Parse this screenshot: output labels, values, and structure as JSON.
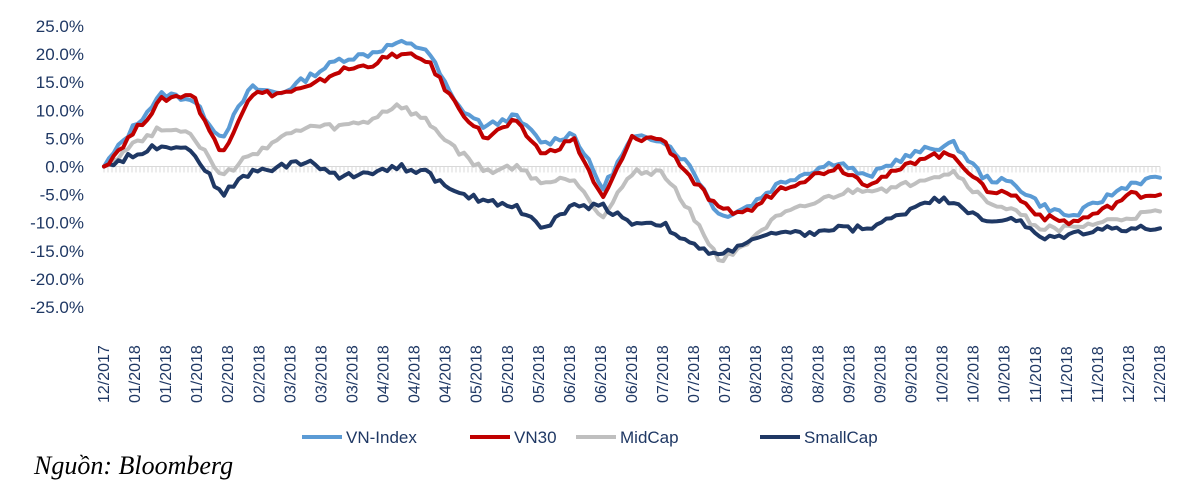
{
  "source_note": "Nguồn: Bloomberg",
  "chart_data": {
    "type": "line",
    "ylim": [
      -0.25,
      0.25
    ],
    "y_ticks": [
      "25.0%",
      "20.0%",
      "15.0%",
      "10.0%",
      "5.0%",
      "0.0%",
      "-5.0%",
      "-10.0%",
      "-15.0%",
      "-20.0%",
      "-25.0%"
    ],
    "x_ticks": [
      "12/2017",
      "01/2018",
      "01/2018",
      "01/2018",
      "02/2018",
      "02/2018",
      "03/2018",
      "03/2018",
      "03/2018",
      "04/2018",
      "04/2018",
      "04/2018",
      "05/2018",
      "05/2018",
      "05/2018",
      "06/2018",
      "06/2018",
      "06/2018",
      "07/2018",
      "07/2018",
      "07/2018",
      "08/2018",
      "08/2018",
      "08/2018",
      "09/2018",
      "09/2018",
      "09/2018",
      "10/2018",
      "10/2018",
      "10/2018",
      "11/2018",
      "11/2018",
      "11/2018",
      "12/2018",
      "12/2018"
    ],
    "legend": "bottom",
    "grid": false,
    "series": [
      {
        "name": "VN-Index",
        "color": "#5b9bd5",
        "values": [
          0.0,
          0.07,
          0.13,
          0.12,
          0.05,
          0.14,
          0.13,
          0.16,
          0.19,
          0.2,
          0.22,
          0.21,
          0.11,
          0.07,
          0.09,
          0.04,
          0.06,
          -0.04,
          0.05,
          0.05,
          0.0,
          -0.09,
          -0.07,
          -0.03,
          -0.01,
          0.01,
          -0.02,
          0.01,
          0.03,
          0.04,
          -0.02,
          -0.03,
          -0.07,
          -0.09,
          -0.06,
          -0.03,
          -0.02
        ]
      },
      {
        "name": "VN30",
        "color": "#c00000",
        "values": [
          0.0,
          0.06,
          0.12,
          0.13,
          0.02,
          0.13,
          0.13,
          0.14,
          0.17,
          0.18,
          0.2,
          0.19,
          0.11,
          0.05,
          0.08,
          0.02,
          0.05,
          -0.06,
          0.05,
          0.05,
          -0.02,
          -0.08,
          -0.08,
          -0.04,
          -0.02,
          0.0,
          -0.03,
          -0.01,
          0.02,
          0.02,
          -0.04,
          -0.05,
          -0.09,
          -0.1,
          -0.08,
          -0.05,
          -0.05
        ]
      },
      {
        "name": "MidCap",
        "color": "#bfbfbf",
        "values": [
          0.0,
          0.04,
          0.07,
          0.06,
          -0.02,
          0.02,
          0.05,
          0.07,
          0.07,
          0.08,
          0.11,
          0.08,
          0.03,
          -0.01,
          0.0,
          -0.03,
          -0.02,
          -0.09,
          -0.01,
          -0.01,
          -0.08,
          -0.17,
          -0.13,
          -0.09,
          -0.07,
          -0.05,
          -0.04,
          -0.04,
          -0.02,
          -0.01,
          -0.06,
          -0.08,
          -0.11,
          -0.11,
          -0.1,
          -0.09,
          -0.08
        ]
      },
      {
        "name": "SmallCap",
        "color": "#1f3864",
        "values": [
          0.0,
          0.02,
          0.04,
          0.03,
          -0.05,
          -0.01,
          0.0,
          0.01,
          -0.02,
          -0.01,
          0.0,
          -0.01,
          -0.05,
          -0.06,
          -0.07,
          -0.11,
          -0.07,
          -0.07,
          -0.1,
          -0.1,
          -0.14,
          -0.16,
          -0.13,
          -0.12,
          -0.12,
          -0.11,
          -0.11,
          -0.09,
          -0.06,
          -0.06,
          -0.1,
          -0.09,
          -0.13,
          -0.12,
          -0.11,
          -0.11,
          -0.11
        ]
      }
    ]
  }
}
